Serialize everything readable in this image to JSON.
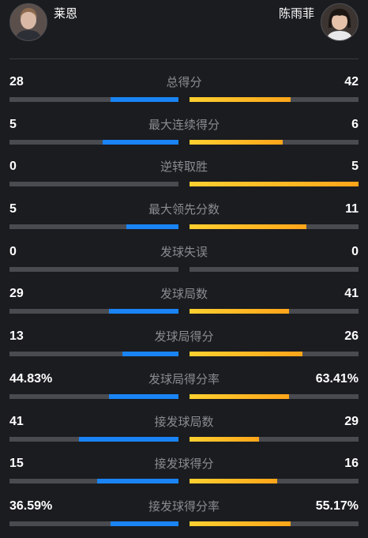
{
  "players": {
    "left": {
      "name": "莱恩"
    },
    "right": {
      "name": "陈雨菲"
    }
  },
  "colors": {
    "left_bar": "#1a84f5",
    "right_bar": "#ffb020",
    "track": "#4a4b50",
    "background": "#1b1c20"
  },
  "stats": [
    {
      "label": "总得分",
      "left": "28",
      "right": "42",
      "left_fill": 0.4,
      "right_fill": 0.6
    },
    {
      "label": "最大连续得分",
      "left": "5",
      "right": "6",
      "left_fill": 0.45,
      "right_fill": 0.55
    },
    {
      "label": "逆转取胜",
      "left": "0",
      "right": "5",
      "left_fill": 0.0,
      "right_fill": 1.0
    },
    {
      "label": "最大领先分数",
      "left": "5",
      "right": "11",
      "left_fill": 0.31,
      "right_fill": 0.69
    },
    {
      "label": "发球失误",
      "left": "0",
      "right": "0",
      "left_fill": 0.0,
      "right_fill": 0.0
    },
    {
      "label": "发球局数",
      "left": "29",
      "right": "41",
      "left_fill": 0.41,
      "right_fill": 0.59
    },
    {
      "label": "发球局得分",
      "left": "13",
      "right": "26",
      "left_fill": 0.33,
      "right_fill": 0.67
    },
    {
      "label": "发球局得分率",
      "left": "44.83%",
      "right": "63.41%",
      "left_fill": 0.41,
      "right_fill": 0.59
    },
    {
      "label": "接发球局数",
      "left": "41",
      "right": "29",
      "left_fill": 0.59,
      "right_fill": 0.41
    },
    {
      "label": "接发球得分",
      "left": "15",
      "right": "16",
      "left_fill": 0.48,
      "right_fill": 0.52
    },
    {
      "label": "接发球得分率",
      "left": "36.59%",
      "right": "55.17%",
      "left_fill": 0.4,
      "right_fill": 0.6
    }
  ]
}
